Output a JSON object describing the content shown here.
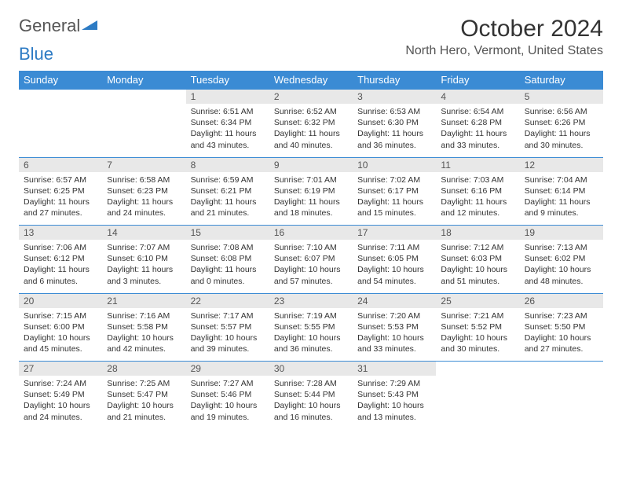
{
  "logo": {
    "text_gray": "General",
    "text_blue": "Blue"
  },
  "title": "October 2024",
  "location": "North Hero, Vermont, United States",
  "colors": {
    "header_bg": "#3b8bd4",
    "header_text": "#ffffff",
    "daynum_bg": "#e8e8e8",
    "rule": "#3b8bd4",
    "text": "#333333",
    "subtext": "#555555"
  },
  "day_headers": [
    "Sunday",
    "Monday",
    "Tuesday",
    "Wednesday",
    "Thursday",
    "Friday",
    "Saturday"
  ],
  "weeks": [
    {
      "nums": [
        "",
        "",
        "1",
        "2",
        "3",
        "4",
        "5"
      ],
      "cells": [
        null,
        null,
        {
          "sunrise": "Sunrise: 6:51 AM",
          "sunset": "Sunset: 6:34 PM",
          "daylight": "Daylight: 11 hours and 43 minutes."
        },
        {
          "sunrise": "Sunrise: 6:52 AM",
          "sunset": "Sunset: 6:32 PM",
          "daylight": "Daylight: 11 hours and 40 minutes."
        },
        {
          "sunrise": "Sunrise: 6:53 AM",
          "sunset": "Sunset: 6:30 PM",
          "daylight": "Daylight: 11 hours and 36 minutes."
        },
        {
          "sunrise": "Sunrise: 6:54 AM",
          "sunset": "Sunset: 6:28 PM",
          "daylight": "Daylight: 11 hours and 33 minutes."
        },
        {
          "sunrise": "Sunrise: 6:56 AM",
          "sunset": "Sunset: 6:26 PM",
          "daylight": "Daylight: 11 hours and 30 minutes."
        }
      ]
    },
    {
      "nums": [
        "6",
        "7",
        "8",
        "9",
        "10",
        "11",
        "12"
      ],
      "cells": [
        {
          "sunrise": "Sunrise: 6:57 AM",
          "sunset": "Sunset: 6:25 PM",
          "daylight": "Daylight: 11 hours and 27 minutes."
        },
        {
          "sunrise": "Sunrise: 6:58 AM",
          "sunset": "Sunset: 6:23 PM",
          "daylight": "Daylight: 11 hours and 24 minutes."
        },
        {
          "sunrise": "Sunrise: 6:59 AM",
          "sunset": "Sunset: 6:21 PM",
          "daylight": "Daylight: 11 hours and 21 minutes."
        },
        {
          "sunrise": "Sunrise: 7:01 AM",
          "sunset": "Sunset: 6:19 PM",
          "daylight": "Daylight: 11 hours and 18 minutes."
        },
        {
          "sunrise": "Sunrise: 7:02 AM",
          "sunset": "Sunset: 6:17 PM",
          "daylight": "Daylight: 11 hours and 15 minutes."
        },
        {
          "sunrise": "Sunrise: 7:03 AM",
          "sunset": "Sunset: 6:16 PM",
          "daylight": "Daylight: 11 hours and 12 minutes."
        },
        {
          "sunrise": "Sunrise: 7:04 AM",
          "sunset": "Sunset: 6:14 PM",
          "daylight": "Daylight: 11 hours and 9 minutes."
        }
      ]
    },
    {
      "nums": [
        "13",
        "14",
        "15",
        "16",
        "17",
        "18",
        "19"
      ],
      "cells": [
        {
          "sunrise": "Sunrise: 7:06 AM",
          "sunset": "Sunset: 6:12 PM",
          "daylight": "Daylight: 11 hours and 6 minutes."
        },
        {
          "sunrise": "Sunrise: 7:07 AM",
          "sunset": "Sunset: 6:10 PM",
          "daylight": "Daylight: 11 hours and 3 minutes."
        },
        {
          "sunrise": "Sunrise: 7:08 AM",
          "sunset": "Sunset: 6:08 PM",
          "daylight": "Daylight: 11 hours and 0 minutes."
        },
        {
          "sunrise": "Sunrise: 7:10 AM",
          "sunset": "Sunset: 6:07 PM",
          "daylight": "Daylight: 10 hours and 57 minutes."
        },
        {
          "sunrise": "Sunrise: 7:11 AM",
          "sunset": "Sunset: 6:05 PM",
          "daylight": "Daylight: 10 hours and 54 minutes."
        },
        {
          "sunrise": "Sunrise: 7:12 AM",
          "sunset": "Sunset: 6:03 PM",
          "daylight": "Daylight: 10 hours and 51 minutes."
        },
        {
          "sunrise": "Sunrise: 7:13 AM",
          "sunset": "Sunset: 6:02 PM",
          "daylight": "Daylight: 10 hours and 48 minutes."
        }
      ]
    },
    {
      "nums": [
        "20",
        "21",
        "22",
        "23",
        "24",
        "25",
        "26"
      ],
      "cells": [
        {
          "sunrise": "Sunrise: 7:15 AM",
          "sunset": "Sunset: 6:00 PM",
          "daylight": "Daylight: 10 hours and 45 minutes."
        },
        {
          "sunrise": "Sunrise: 7:16 AM",
          "sunset": "Sunset: 5:58 PM",
          "daylight": "Daylight: 10 hours and 42 minutes."
        },
        {
          "sunrise": "Sunrise: 7:17 AM",
          "sunset": "Sunset: 5:57 PM",
          "daylight": "Daylight: 10 hours and 39 minutes."
        },
        {
          "sunrise": "Sunrise: 7:19 AM",
          "sunset": "Sunset: 5:55 PM",
          "daylight": "Daylight: 10 hours and 36 minutes."
        },
        {
          "sunrise": "Sunrise: 7:20 AM",
          "sunset": "Sunset: 5:53 PM",
          "daylight": "Daylight: 10 hours and 33 minutes."
        },
        {
          "sunrise": "Sunrise: 7:21 AM",
          "sunset": "Sunset: 5:52 PM",
          "daylight": "Daylight: 10 hours and 30 minutes."
        },
        {
          "sunrise": "Sunrise: 7:23 AM",
          "sunset": "Sunset: 5:50 PM",
          "daylight": "Daylight: 10 hours and 27 minutes."
        }
      ]
    },
    {
      "nums": [
        "27",
        "28",
        "29",
        "30",
        "31",
        "",
        ""
      ],
      "cells": [
        {
          "sunrise": "Sunrise: 7:24 AM",
          "sunset": "Sunset: 5:49 PM",
          "daylight": "Daylight: 10 hours and 24 minutes."
        },
        {
          "sunrise": "Sunrise: 7:25 AM",
          "sunset": "Sunset: 5:47 PM",
          "daylight": "Daylight: 10 hours and 21 minutes."
        },
        {
          "sunrise": "Sunrise: 7:27 AM",
          "sunset": "Sunset: 5:46 PM",
          "daylight": "Daylight: 10 hours and 19 minutes."
        },
        {
          "sunrise": "Sunrise: 7:28 AM",
          "sunset": "Sunset: 5:44 PM",
          "daylight": "Daylight: 10 hours and 16 minutes."
        },
        {
          "sunrise": "Sunrise: 7:29 AM",
          "sunset": "Sunset: 5:43 PM",
          "daylight": "Daylight: 10 hours and 13 minutes."
        },
        null,
        null
      ]
    }
  ]
}
